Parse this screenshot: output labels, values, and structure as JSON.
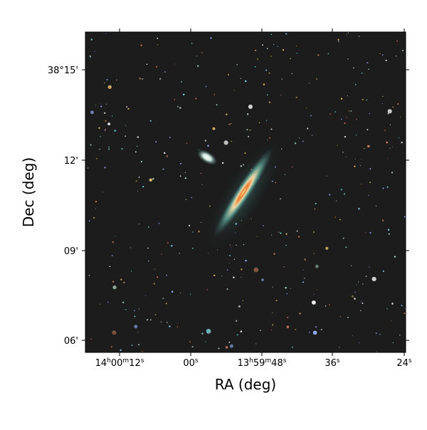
{
  "figure": {
    "xlabel": "RA (deg)",
    "ylabel": "Dec (deg)",
    "background_color": "#1c1c1c",
    "x_ticks": [
      {
        "parts": [
          [
            "14",
            "h"
          ],
          [
            "00",
            "m"
          ],
          [
            "12",
            "s"
          ]
        ]
      },
      {
        "parts": [
          [
            "00",
            "s"
          ]
        ]
      },
      {
        "parts": [
          [
            "13",
            "h"
          ],
          [
            "59",
            "m"
          ],
          [
            "48",
            "s"
          ]
        ]
      },
      {
        "parts": [
          [
            "36",
            "s"
          ]
        ]
      },
      {
        "parts": [
          [
            "24",
            "s"
          ]
        ]
      }
    ],
    "y_ticks": [
      "38°15'",
      "12'",
      "09'",
      "06'"
    ]
  }
}
